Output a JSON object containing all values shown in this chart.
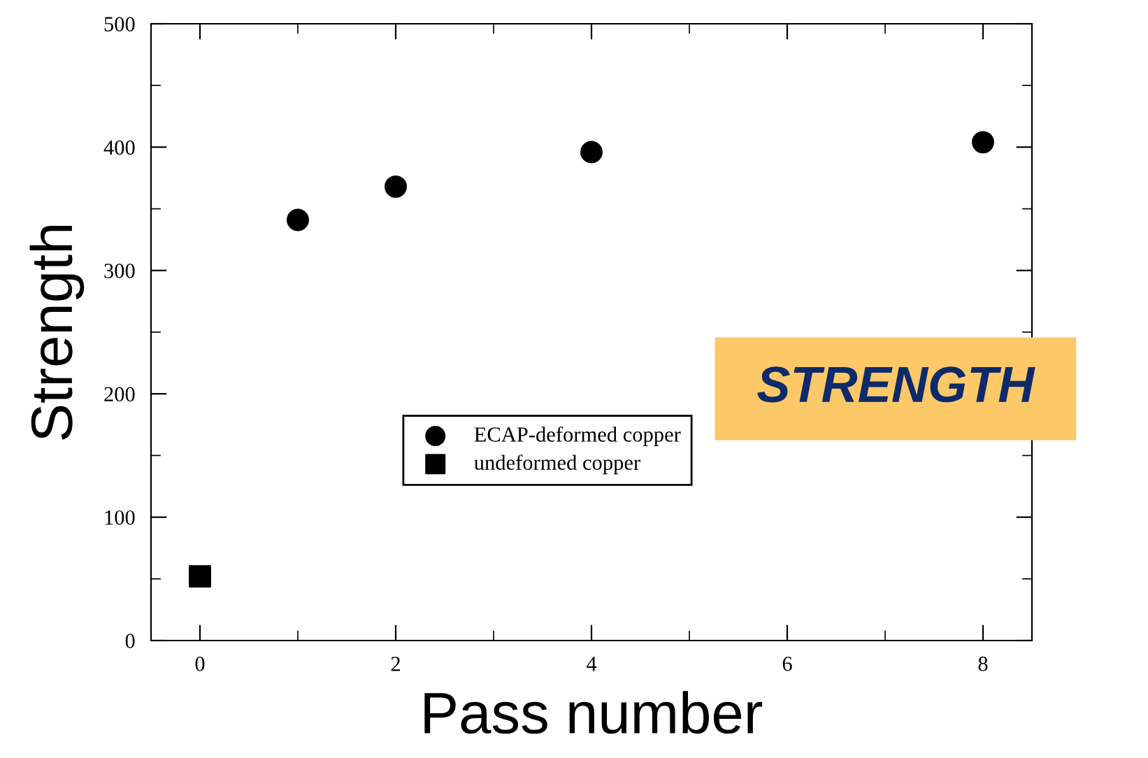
{
  "chart_data": {
    "type": "scatter",
    "xlabel": "Pass number",
    "ylabel": "Strength",
    "xlim": [
      -0.5,
      8.5
    ],
    "xticks": [
      0,
      2,
      4,
      6,
      8
    ],
    "ylim": [
      0,
      500
    ],
    "yticks": [
      0,
      100,
      200,
      300,
      400,
      500
    ],
    "grid": false,
    "legend": "bottom",
    "series": [
      {
        "name": "ECAP-deformed copper",
        "color": "#000000",
        "marker": "circle",
        "x": [
          1,
          2,
          4,
          8
        ],
        "values": [
          341,
          368,
          396,
          404
        ]
      },
      {
        "name": "undeformed copper",
        "color": "#000000",
        "marker": "square",
        "x": [
          0
        ],
        "values": [
          52
        ]
      }
    ],
    "annotations": [
      "STRENGTH"
    ]
  }
}
